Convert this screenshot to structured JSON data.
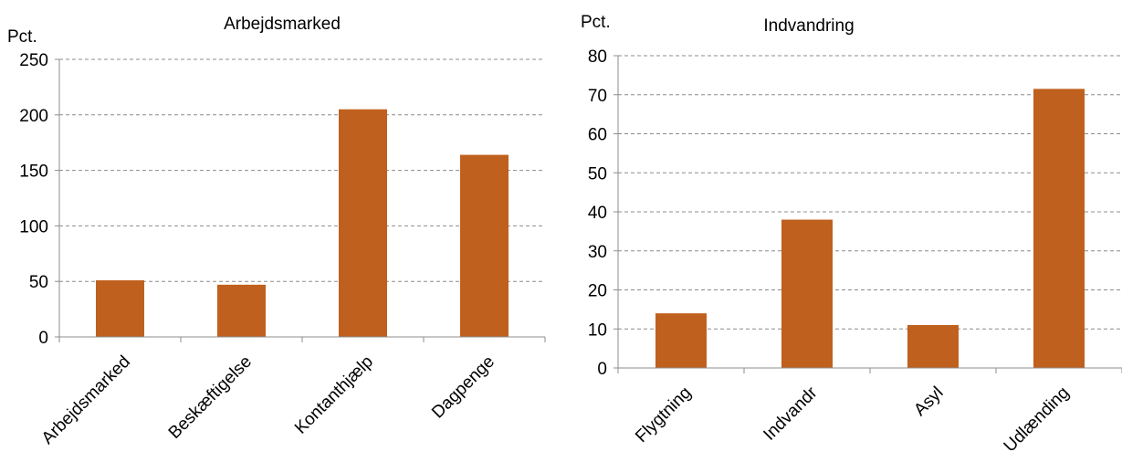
{
  "chart_data": [
    {
      "type": "bar",
      "title": "Arbejdsmarked",
      "ylabel": "Pct.",
      "categories": [
        "Arbejdsmarked",
        "Beskæftigelse",
        "Kontanthjælp",
        "Dagpenge"
      ],
      "values": [
        51,
        47,
        205,
        164
      ],
      "ylim": [
        0,
        250
      ],
      "yticks": [
        0,
        50,
        100,
        150,
        200,
        250
      ],
      "grid": "horizontal dashed",
      "bar_color": "#C0601E"
    },
    {
      "type": "bar",
      "title": "Indvandring",
      "ylabel": "Pct.",
      "categories": [
        "Flygtning",
        "Indvandr",
        "Asyl",
        "Udlænding"
      ],
      "values": [
        14,
        38,
        11,
        71.5
      ],
      "ylim": [
        0,
        80
      ],
      "yticks": [
        0,
        10,
        20,
        30,
        40,
        50,
        60,
        70,
        80
      ],
      "grid": "horizontal dashed",
      "bar_color": "#C0601E"
    }
  ]
}
